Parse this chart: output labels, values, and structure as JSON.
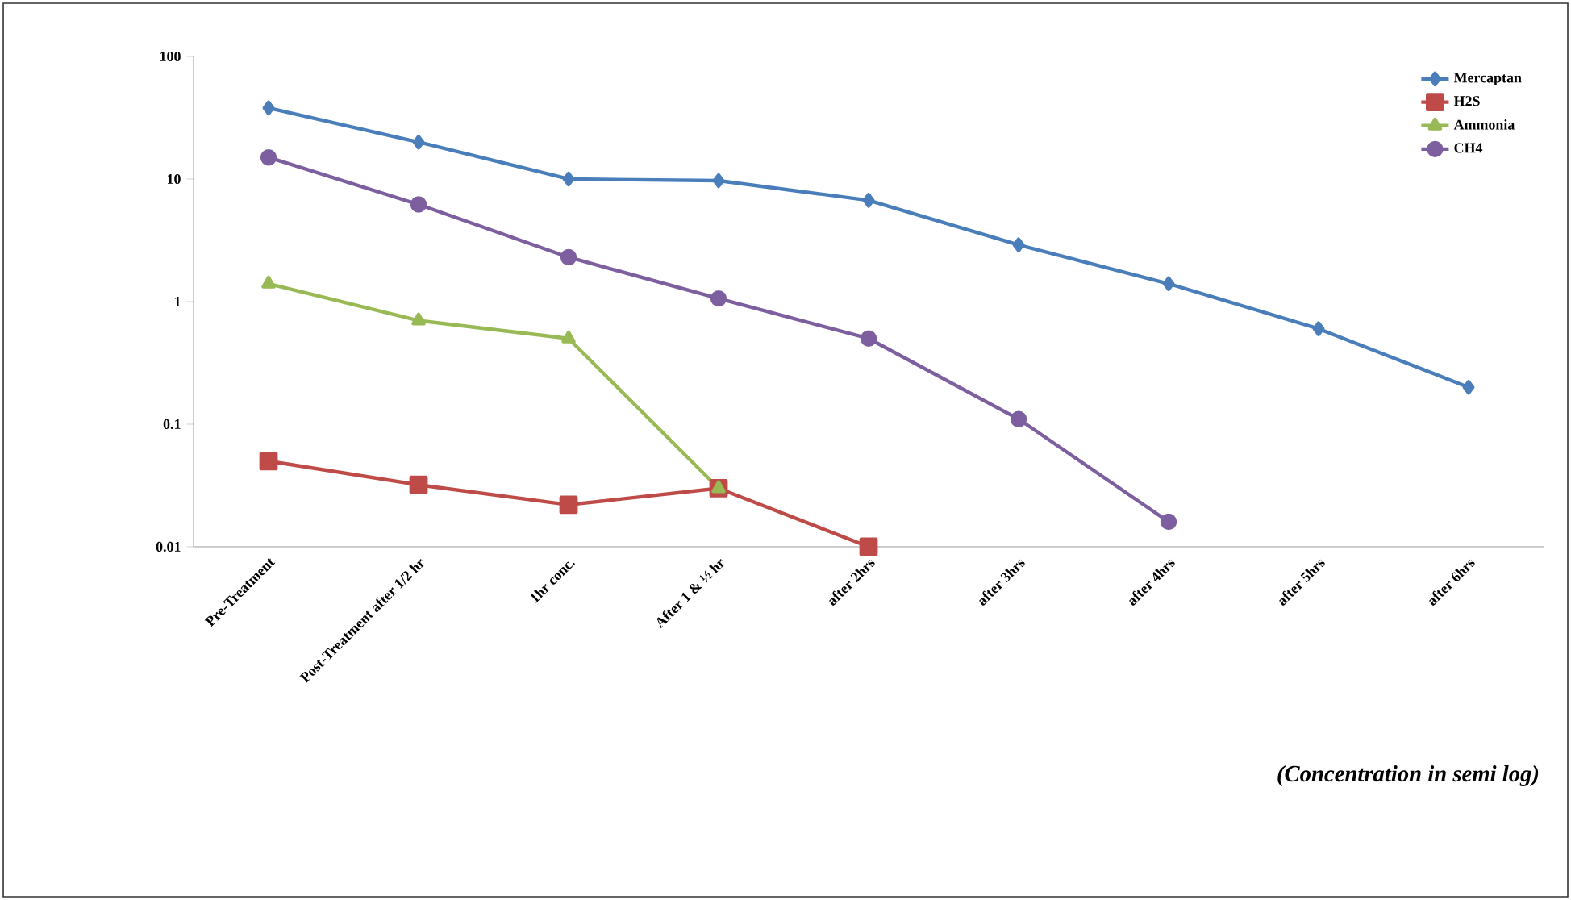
{
  "chart_data": {
    "type": "line",
    "log": "y",
    "categories": [
      "Pre-Treatment",
      "Post-Treatment after 1/2 hr",
      "1hr conc.",
      "After 1 & ½ hr",
      "after 2hrs",
      "after 3hrs",
      "after 4hrs",
      "after 5hrs",
      "after 6hrs"
    ],
    "series": [
      {
        "name": "Mercaptan",
        "color": "#4a7ebb",
        "marker": "diamond",
        "values": [
          38,
          20,
          10,
          9.7,
          6.7,
          2.9,
          1.4,
          0.6,
          0.2
        ]
      },
      {
        "name": "H2S",
        "color": "#be4b48",
        "marker": "square",
        "values": [
          0.05,
          0.032,
          0.022,
          0.03,
          0.01,
          null,
          null,
          null,
          null
        ]
      },
      {
        "name": "Ammonia",
        "color": "#98b954",
        "marker": "triangle",
        "values": [
          1.4,
          0.7,
          0.5,
          0.03,
          null,
          null,
          null,
          null,
          null
        ]
      },
      {
        "name": "CH4",
        "color": "#7d5fa0",
        "marker": "circle",
        "values": [
          15,
          6.2,
          2.3,
          1.06,
          0.5,
          0.11,
          0.016,
          null,
          null
        ]
      }
    ],
    "ylim": [
      0.01,
      100
    ],
    "yticks": [
      0.01,
      0.1,
      1,
      10,
      100
    ],
    "legend": "top right",
    "grid": false,
    "annotations": [
      "(Concentration in semi log)"
    ]
  }
}
